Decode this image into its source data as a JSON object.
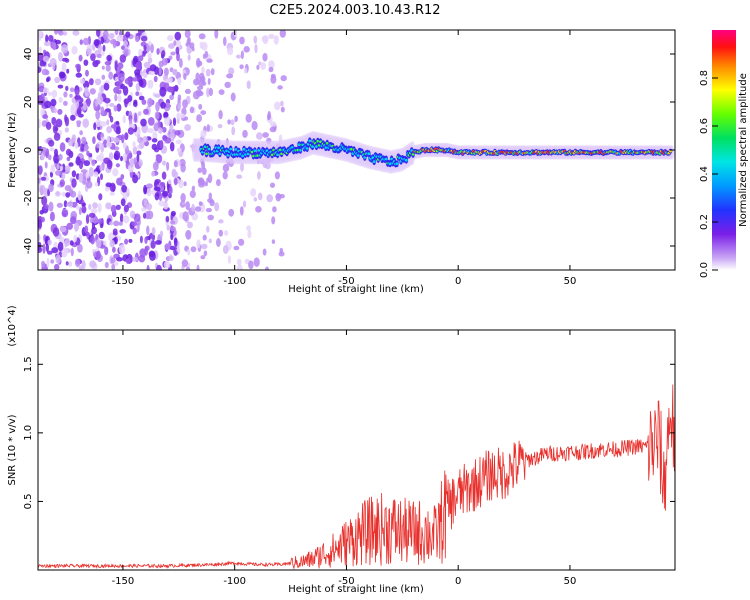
{
  "title": "C2E5.2024.003.10.43.R12",
  "chart_data": [
    {
      "type": "heatmap",
      "xlabel": "Height of straight line (km)",
      "ylabel": "Frequency (Hz)",
      "xlim": [
        -188,
        97
      ],
      "ylim": [
        -50,
        50
      ],
      "x_ticks": [
        -150,
        -100,
        -50,
        0,
        50
      ],
      "y_ticks": [
        -40,
        -20,
        0,
        20,
        40
      ],
      "colorbar": {
        "label": "Normalized spectral amplitude",
        "range": [
          0.0,
          1.0
        ],
        "ticks": [
          "0.0",
          "0.2",
          "0.4",
          "0.6",
          "0.8"
        ],
        "colormap": "rainbow (white-violet-blue-cyan-green-yellow-red-magenta)"
      },
      "ridge": {
        "description": "High-amplitude ridge near 0 Hz from about -115 km to 95 km; noise scatter across the full frequency range below about -85 km",
        "x": [
          -115,
          -100,
          -80,
          -70,
          -65,
          -55,
          -50,
          -40,
          -35,
          -30,
          -25,
          -20,
          -15,
          -10,
          -5,
          0,
          10,
          20,
          30,
          40,
          50,
          60,
          70,
          80,
          95
        ],
        "y": [
          0,
          -1,
          -1,
          1,
          3,
          1,
          0,
          -3,
          -4,
          -5,
          -4,
          -1,
          0,
          0,
          0,
          -1,
          -1,
          -1,
          -1,
          -1,
          -1,
          -1,
          -1,
          -1,
          -1
        ]
      }
    },
    {
      "type": "line",
      "xlabel": "Height of straight line (km)",
      "ylabel": "SNR (10 * v/v)",
      "y_multiplier": "(x10^4)",
      "xlim": [
        -188,
        97
      ],
      "ylim": [
        0,
        1.75
      ],
      "x_ticks": [
        -150,
        -100,
        -50,
        0,
        50
      ],
      "y_ticks": [
        "0.5",
        "1.0",
        "1.5"
      ],
      "color": "#e8302c",
      "series": [
        {
          "x": [
            -188,
            -170,
            -150,
            -130,
            -110,
            -100,
            -90,
            -80,
            -70,
            -65,
            -60,
            -55,
            -50,
            -45,
            -40,
            -35,
            -30,
            -25,
            -20,
            -15,
            -10,
            -5,
            0,
            5,
            10,
            15,
            20,
            25,
            30,
            35,
            40,
            45,
            50,
            55,
            60,
            65,
            70,
            75,
            80,
            85,
            88,
            90,
            92,
            95,
            97
          ],
          "y": [
            0.03,
            0.03,
            0.03,
            0.03,
            0.04,
            0.05,
            0.04,
            0.04,
            0.06,
            0.08,
            0.12,
            0.15,
            0.2,
            0.25,
            0.28,
            0.3,
            0.3,
            0.28,
            0.27,
            0.28,
            0.25,
            0.45,
            0.55,
            0.6,
            0.65,
            0.7,
            0.7,
            0.75,
            0.8,
            0.82,
            0.85,
            0.85,
            0.86,
            0.86,
            0.87,
            0.88,
            0.88,
            0.89,
            0.9,
            0.9,
            0.92,
            0.95,
            0.6,
            1.2,
            0.9
          ]
        }
      ]
    }
  ]
}
